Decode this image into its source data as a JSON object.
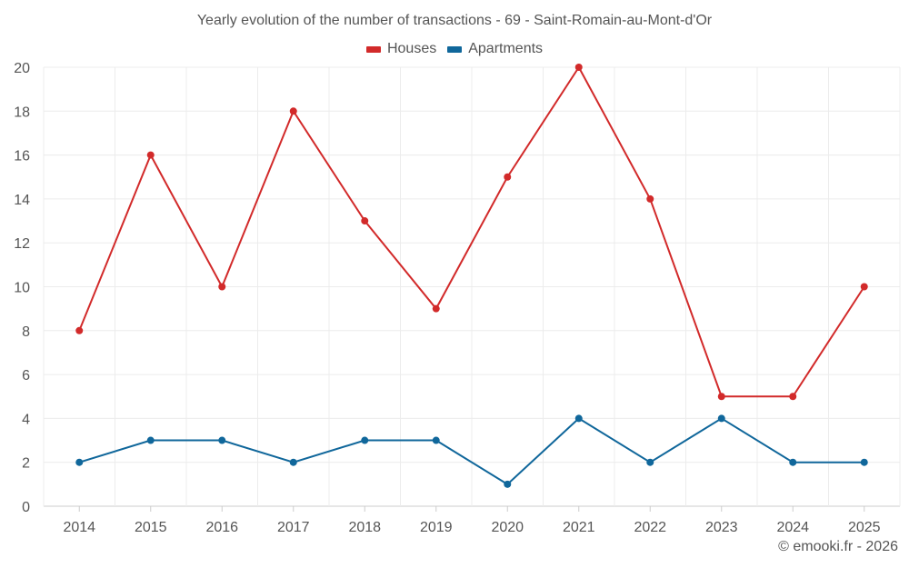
{
  "chart_data": {
    "type": "line",
    "title": "Yearly evolution of the number of transactions - 69 - Saint-Romain-au-Mont-d'Or",
    "xlabel": "",
    "ylabel": "",
    "categories": [
      "2014",
      "2015",
      "2016",
      "2017",
      "2018",
      "2019",
      "2020",
      "2021",
      "2022",
      "2023",
      "2024",
      "2025"
    ],
    "ylim": [
      0,
      20
    ],
    "yticks": [
      0,
      2,
      4,
      6,
      8,
      10,
      12,
      14,
      16,
      18,
      20
    ],
    "grid": true,
    "legend_position": "top-center",
    "series": [
      {
        "name": "Houses",
        "color": "#d22a2a",
        "values": [
          8,
          16,
          10,
          18,
          13,
          9,
          15,
          20,
          14,
          5,
          5,
          10
        ]
      },
      {
        "name": "Apartments",
        "color": "#10679b",
        "values": [
          2,
          3,
          3,
          2,
          3,
          3,
          1,
          4,
          2,
          4,
          2,
          2
        ]
      }
    ]
  },
  "footer": {
    "copyright": "© emooki.fr - 2026"
  }
}
